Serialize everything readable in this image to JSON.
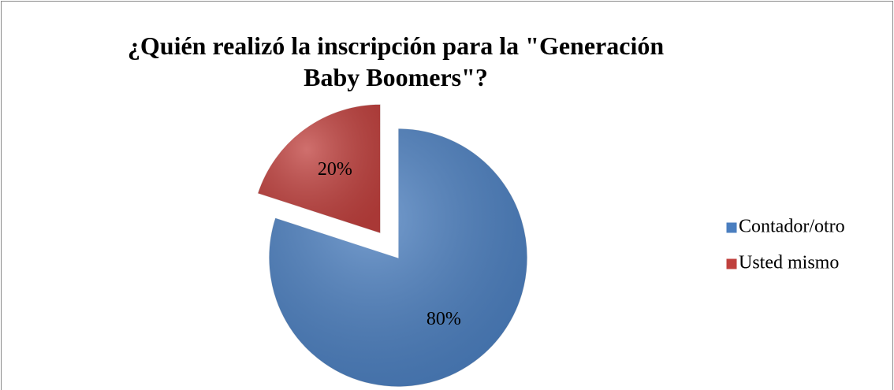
{
  "chart_data": {
    "type": "pie",
    "title": "¿Quién realizó la inscripción para la \"Generación Baby Boomers\"?",
    "categories": [
      "Contador/otro",
      "Usted mismo"
    ],
    "values": [
      80,
      20
    ],
    "value_labels": [
      "80%",
      "20%"
    ],
    "colors": [
      "#4a7ebf",
      "#c0403d"
    ],
    "exploded": [
      false,
      true
    ],
    "legend": "right"
  }
}
